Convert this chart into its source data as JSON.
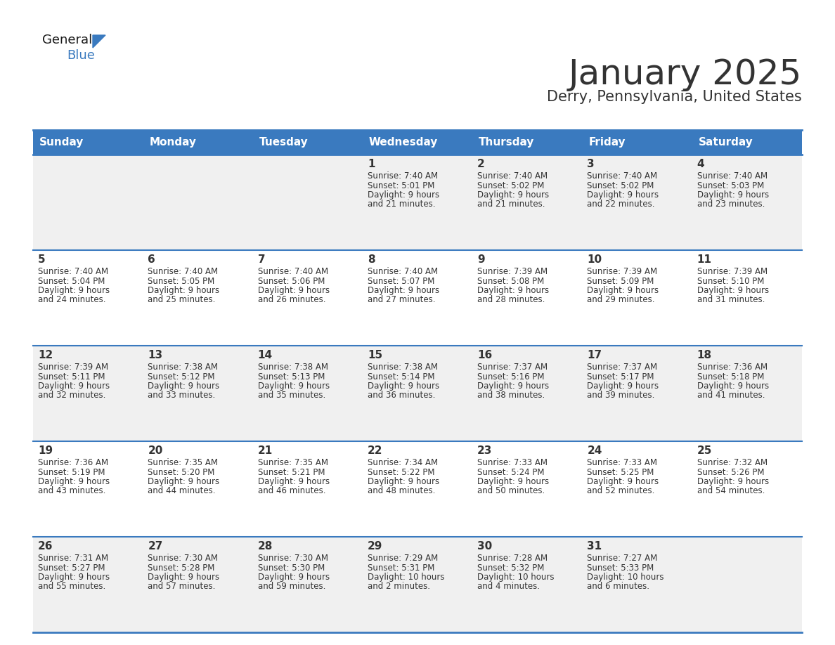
{
  "title": "January 2025",
  "subtitle": "Derry, Pennsylvania, United States",
  "header_color": "#3a7abf",
  "header_text_color": "#ffffff",
  "cell_bg_color": "#f0f0f0",
  "cell_alt_bg_color": "#ffffff",
  "border_color": "#3a7abf",
  "text_color": "#333333",
  "days_of_week": [
    "Sunday",
    "Monday",
    "Tuesday",
    "Wednesday",
    "Thursday",
    "Friday",
    "Saturday"
  ],
  "calendar_data": [
    [
      {
        "day": "",
        "sunrise": "",
        "sunset": "",
        "daylight_h": "",
        "daylight_m": ""
      },
      {
        "day": "",
        "sunrise": "",
        "sunset": "",
        "daylight_h": "",
        "daylight_m": ""
      },
      {
        "day": "",
        "sunrise": "",
        "sunset": "",
        "daylight_h": "",
        "daylight_m": ""
      },
      {
        "day": "1",
        "sunrise": "7:40 AM",
        "sunset": "5:01 PM",
        "daylight_h": "9",
        "daylight_m": "21"
      },
      {
        "day": "2",
        "sunrise": "7:40 AM",
        "sunset": "5:02 PM",
        "daylight_h": "9",
        "daylight_m": "21"
      },
      {
        "day": "3",
        "sunrise": "7:40 AM",
        "sunset": "5:02 PM",
        "daylight_h": "9",
        "daylight_m": "22"
      },
      {
        "day": "4",
        "sunrise": "7:40 AM",
        "sunset": "5:03 PM",
        "daylight_h": "9",
        "daylight_m": "23"
      }
    ],
    [
      {
        "day": "5",
        "sunrise": "7:40 AM",
        "sunset": "5:04 PM",
        "daylight_h": "9",
        "daylight_m": "24"
      },
      {
        "day": "6",
        "sunrise": "7:40 AM",
        "sunset": "5:05 PM",
        "daylight_h": "9",
        "daylight_m": "25"
      },
      {
        "day": "7",
        "sunrise": "7:40 AM",
        "sunset": "5:06 PM",
        "daylight_h": "9",
        "daylight_m": "26"
      },
      {
        "day": "8",
        "sunrise": "7:40 AM",
        "sunset": "5:07 PM",
        "daylight_h": "9",
        "daylight_m": "27"
      },
      {
        "day": "9",
        "sunrise": "7:39 AM",
        "sunset": "5:08 PM",
        "daylight_h": "9",
        "daylight_m": "28"
      },
      {
        "day": "10",
        "sunrise": "7:39 AM",
        "sunset": "5:09 PM",
        "daylight_h": "9",
        "daylight_m": "29"
      },
      {
        "day": "11",
        "sunrise": "7:39 AM",
        "sunset": "5:10 PM",
        "daylight_h": "9",
        "daylight_m": "31"
      }
    ],
    [
      {
        "day": "12",
        "sunrise": "7:39 AM",
        "sunset": "5:11 PM",
        "daylight_h": "9",
        "daylight_m": "32"
      },
      {
        "day": "13",
        "sunrise": "7:38 AM",
        "sunset": "5:12 PM",
        "daylight_h": "9",
        "daylight_m": "33"
      },
      {
        "day": "14",
        "sunrise": "7:38 AM",
        "sunset": "5:13 PM",
        "daylight_h": "9",
        "daylight_m": "35"
      },
      {
        "day": "15",
        "sunrise": "7:38 AM",
        "sunset": "5:14 PM",
        "daylight_h": "9",
        "daylight_m": "36"
      },
      {
        "day": "16",
        "sunrise": "7:37 AM",
        "sunset": "5:16 PM",
        "daylight_h": "9",
        "daylight_m": "38"
      },
      {
        "day": "17",
        "sunrise": "7:37 AM",
        "sunset": "5:17 PM",
        "daylight_h": "9",
        "daylight_m": "39"
      },
      {
        "day": "18",
        "sunrise": "7:36 AM",
        "sunset": "5:18 PM",
        "daylight_h": "9",
        "daylight_m": "41"
      }
    ],
    [
      {
        "day": "19",
        "sunrise": "7:36 AM",
        "sunset": "5:19 PM",
        "daylight_h": "9",
        "daylight_m": "43"
      },
      {
        "day": "20",
        "sunrise": "7:35 AM",
        "sunset": "5:20 PM",
        "daylight_h": "9",
        "daylight_m": "44"
      },
      {
        "day": "21",
        "sunrise": "7:35 AM",
        "sunset": "5:21 PM",
        "daylight_h": "9",
        "daylight_m": "46"
      },
      {
        "day": "22",
        "sunrise": "7:34 AM",
        "sunset": "5:22 PM",
        "daylight_h": "9",
        "daylight_m": "48"
      },
      {
        "day": "23",
        "sunrise": "7:33 AM",
        "sunset": "5:24 PM",
        "daylight_h": "9",
        "daylight_m": "50"
      },
      {
        "day": "24",
        "sunrise": "7:33 AM",
        "sunset": "5:25 PM",
        "daylight_h": "9",
        "daylight_m": "52"
      },
      {
        "day": "25",
        "sunrise": "7:32 AM",
        "sunset": "5:26 PM",
        "daylight_h": "9",
        "daylight_m": "54"
      }
    ],
    [
      {
        "day": "26",
        "sunrise": "7:31 AM",
        "sunset": "5:27 PM",
        "daylight_h": "9",
        "daylight_m": "55"
      },
      {
        "day": "27",
        "sunrise": "7:30 AM",
        "sunset": "5:28 PM",
        "daylight_h": "9",
        "daylight_m": "57"
      },
      {
        "day": "28",
        "sunrise": "7:30 AM",
        "sunset": "5:30 PM",
        "daylight_h": "9",
        "daylight_m": "59"
      },
      {
        "day": "29",
        "sunrise": "7:29 AM",
        "sunset": "5:31 PM",
        "daylight_h": "10",
        "daylight_m": "2"
      },
      {
        "day": "30",
        "sunrise": "7:28 AM",
        "sunset": "5:32 PM",
        "daylight_h": "10",
        "daylight_m": "4"
      },
      {
        "day": "31",
        "sunrise": "7:27 AM",
        "sunset": "5:33 PM",
        "daylight_h": "10",
        "daylight_m": "6"
      },
      {
        "day": "",
        "sunrise": "",
        "sunset": "",
        "daylight_h": "",
        "daylight_m": ""
      }
    ]
  ],
  "title_fontsize": 36,
  "subtitle_fontsize": 15,
  "header_fontsize": 11,
  "day_num_fontsize": 11,
  "cell_text_fontsize": 8.5,
  "logo_general_fontsize": 13,
  "logo_blue_fontsize": 13
}
